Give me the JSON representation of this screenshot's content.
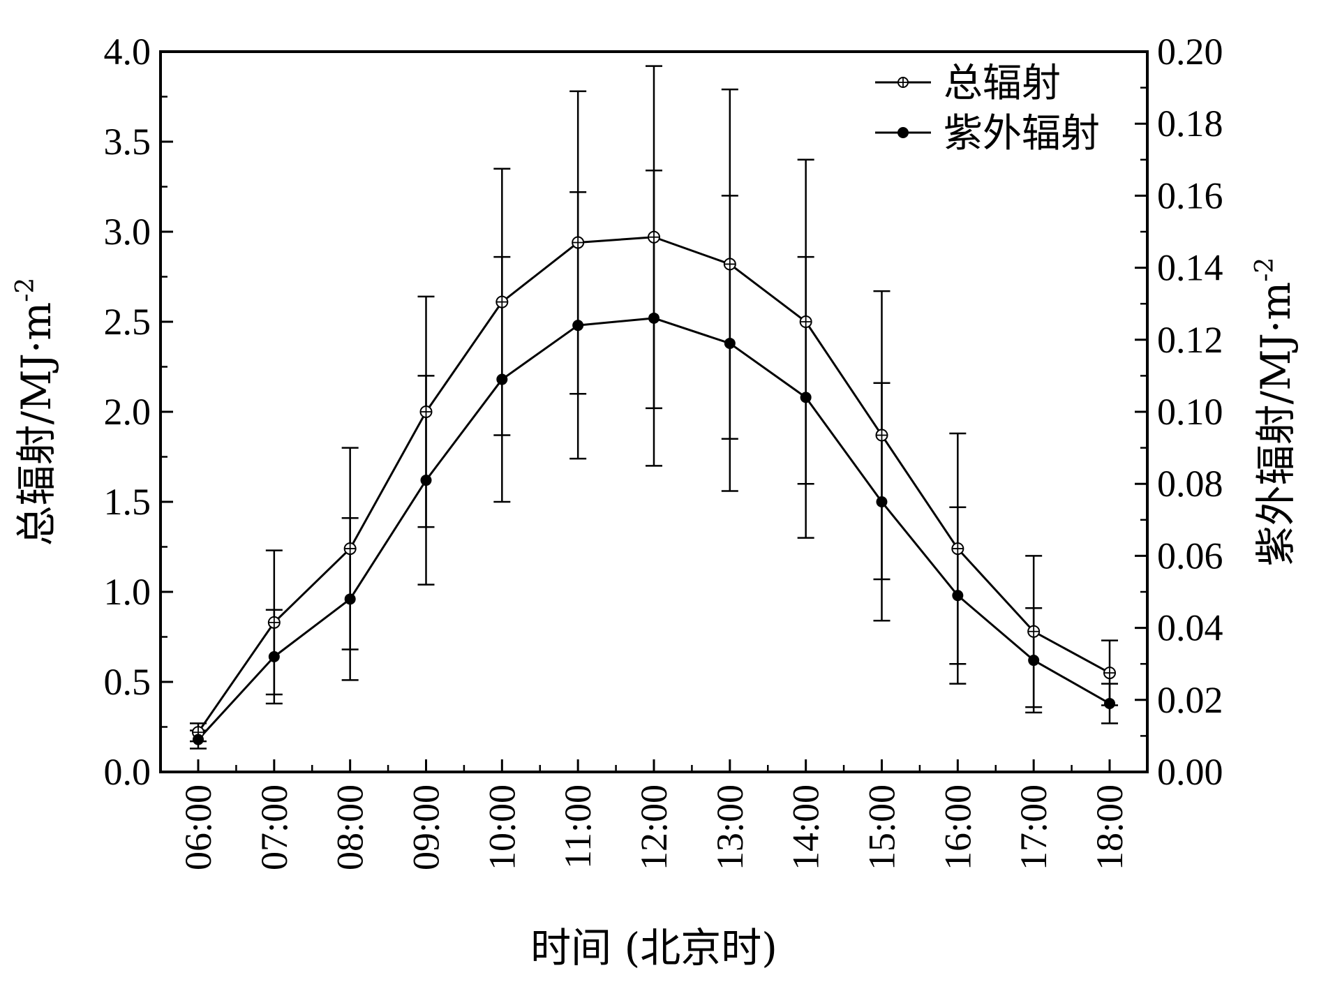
{
  "chart_data": {
    "type": "line",
    "title": "",
    "xlabel": "时间 (北京时)",
    "ylabel_left": "总辐射/MJ·m",
    "ylabel_left_sup": "-2",
    "ylabel_right": "紫外辐射/MJ·m",
    "ylabel_right_sup": "-2",
    "categories": [
      "06:00",
      "07:00",
      "08:00",
      "09:00",
      "10:00",
      "11:00",
      "12:00",
      "13:00",
      "14:00",
      "15:00",
      "16:00",
      "17:00",
      "18:00"
    ],
    "y_left_lim": [
      0,
      4.0
    ],
    "y_left_ticks": [
      "0.0",
      "0.5",
      "1.0",
      "1.5",
      "2.0",
      "2.5",
      "3.0",
      "3.5",
      "4.0"
    ],
    "y_right_lim": [
      0,
      0.2
    ],
    "y_right_ticks": [
      "0.00",
      "0.02",
      "0.04",
      "0.06",
      "0.08",
      "0.10",
      "0.12",
      "0.14",
      "0.16",
      "0.18",
      "0.20"
    ],
    "legend_position": "top-right",
    "grid": false,
    "series": [
      {
        "name": "总辐射",
        "axis": "left",
        "marker": "circle-plus",
        "values": [
          0.22,
          0.83,
          1.24,
          2.0,
          2.61,
          2.94,
          2.97,
          2.82,
          2.5,
          1.87,
          1.24,
          0.78,
          0.55
        ],
        "err": [
          0.05,
          0.4,
          0.56,
          0.64,
          0.74,
          0.84,
          0.95,
          0.97,
          0.9,
          0.8,
          0.64,
          0.42,
          0.18
        ]
      },
      {
        "name": "紫外辐射",
        "axis": "right",
        "marker": "filled-circle",
        "values": [
          0.009,
          0.032,
          0.048,
          0.081,
          0.109,
          0.124,
          0.126,
          0.119,
          0.104,
          0.075,
          0.049,
          0.031,
          0.019
        ],
        "err": [
          0.0025,
          0.013,
          0.0225,
          0.029,
          0.034,
          0.037,
          0.041,
          0.041,
          0.039,
          0.033,
          0.0245,
          0.0145,
          0.0055
        ]
      }
    ]
  }
}
